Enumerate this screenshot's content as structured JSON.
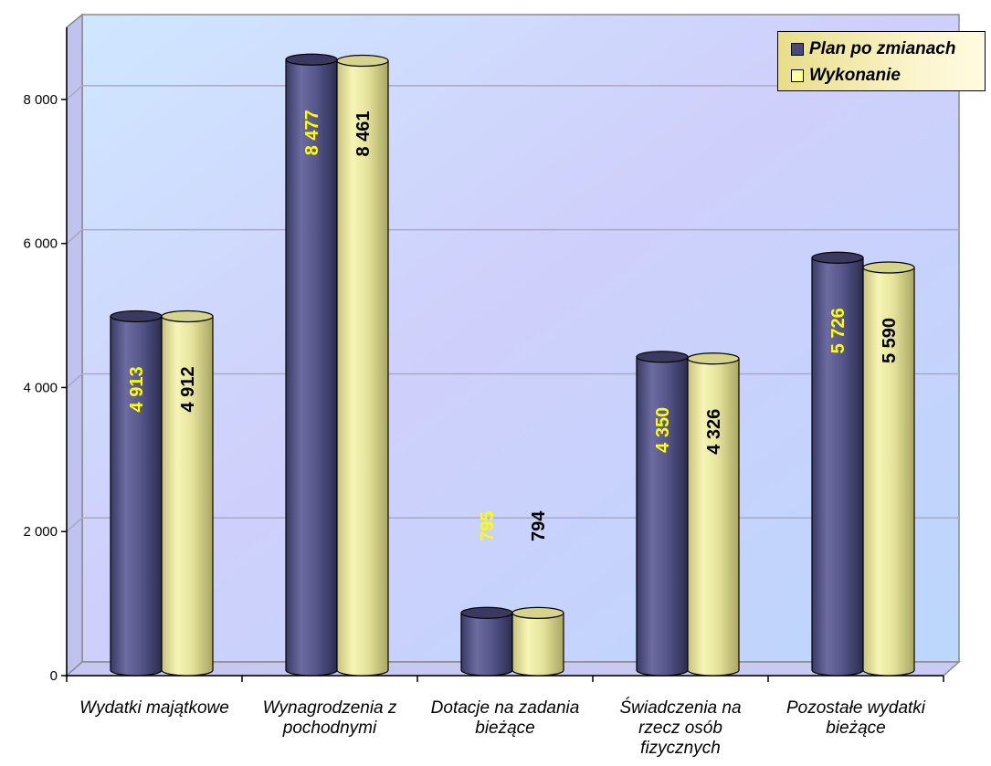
{
  "chart_data": {
    "type": "bar",
    "title": "",
    "xlabel": "",
    "ylabel": "",
    "ylim": [
      0,
      9000
    ],
    "yticks": [
      0,
      2000,
      4000,
      6000,
      8000
    ],
    "ytick_labels": [
      "0",
      "2 000",
      "4 000",
      "6 000",
      "8 000"
    ],
    "grid": true,
    "legend_position": "top-right",
    "categories": [
      [
        "Wydatki majątkowe"
      ],
      [
        "Wynagrodzenia z",
        "pochodnymi"
      ],
      [
        "Dotacje na zadania",
        "bieżące"
      ],
      [
        "Świadczenia na",
        "rzecz osób",
        "fizycznych"
      ],
      [
        "Pozostałe wydatki",
        "bieżące"
      ]
    ],
    "series": [
      {
        "name": "Plan po zmianach",
        "values": [
          4913,
          8477,
          795,
          4350,
          5726
        ],
        "labels": [
          "4 913",
          "8 477",
          "795",
          "4 350",
          "5 726"
        ],
        "color": "#5a5a8c",
        "label_color": "#ffff00"
      },
      {
        "name": "Wykonanie",
        "values": [
          4912,
          8461,
          794,
          4326,
          5590
        ],
        "labels": [
          "4 912",
          "8 461",
          "794",
          "4 326",
          "5 590"
        ],
        "color": "#e8e6a0",
        "label_color": "#000000"
      }
    ]
  },
  "legend": {
    "items": [
      {
        "label": "Plan po zmianach",
        "color": "#4a4a7a"
      },
      {
        "label": "Wykonanie",
        "color": "#ffff99"
      }
    ]
  }
}
